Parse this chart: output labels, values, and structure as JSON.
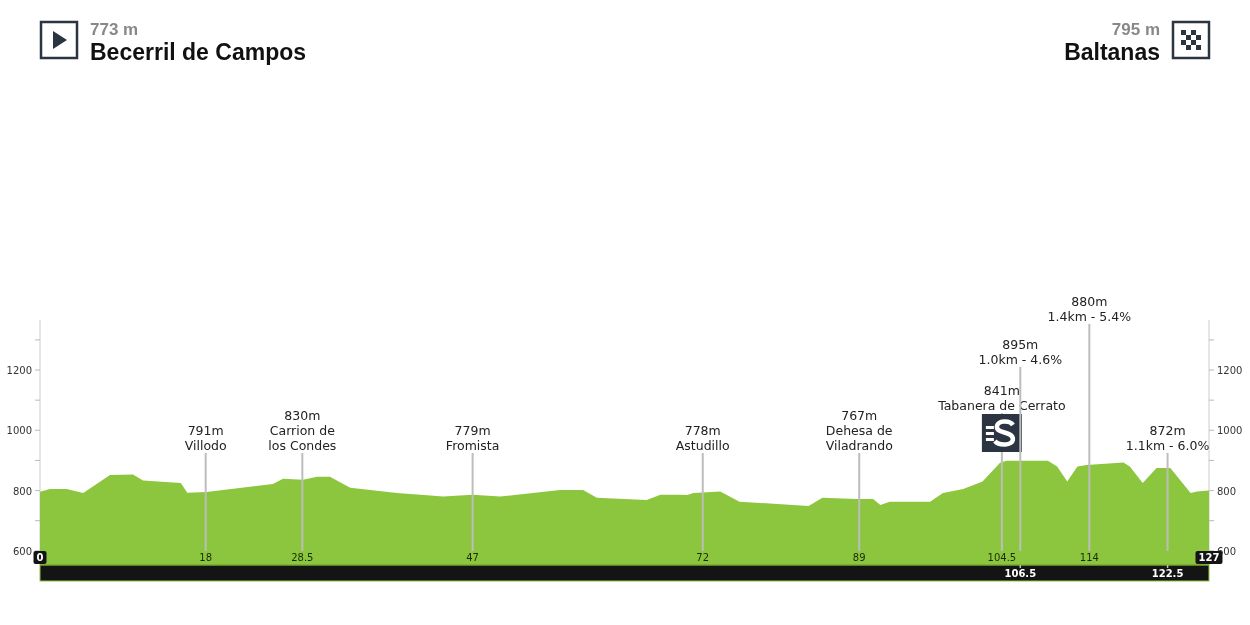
{
  "chart_data": {
    "type": "area",
    "title": "Becerril de Campos",
    "subtitle": "773 m",
    "x": [
      0,
      1.1,
      2.9,
      4.7,
      7.6,
      10.1,
      11.2,
      15.3,
      16,
      18.1,
      25.3,
      26.4,
      28.6,
      30.1,
      31.5,
      33.7,
      38.8,
      43.8,
      47,
      50,
      56.5,
      59,
      60.5,
      65.9,
      67.4,
      69.5,
      70.3,
      71,
      73.9,
      76,
      78.2,
      83.5,
      85,
      88.7,
      90.5,
      91.3,
      92.3,
      96.7,
      98.1,
      100.3,
      102.4,
      104.3,
      105,
      109.5,
      110.5,
      111.6,
      112.7,
      113.7,
      117.7,
      118.4,
      119.8,
      121.3,
      122.8,
      125,
      125.7,
      127
    ],
    "series": [
      {
        "color": "#8cc63e",
        "values": [
          796,
          805,
          805,
          792,
          852,
          853,
          833,
          825,
          793,
          795,
          822,
          839,
          836,
          846,
          846,
          809,
          792,
          780,
          786,
          780,
          802,
          802,
          776,
          769,
          786,
          786,
          785,
          792,
          797,
          763,
          759,
          749,
          776,
          772,
          772,
          752,
          763,
          763,
          792,
          805,
          830,
          892,
          899,
          899,
          880,
          830,
          880,
          885,
          893,
          880,
          825,
          875,
          875,
          792,
          797,
          800
        ]
      }
    ],
    "xlim": [
      0,
      127
    ],
    "xticks": [
      0,
      18,
      28.5,
      47,
      72,
      89,
      104.5,
      114,
      127
    ],
    "x2lim": [
      0,
      127
    ],
    "x2ticks": [
      106.5,
      122.5
    ],
    "ylim": [
      553,
      1366
    ],
    "yticks": [
      600,
      {
        "value": 700,
        "label": null
      },
      800,
      {
        "value": 900,
        "label": null
      },
      1000,
      {
        "value": 1100,
        "label": null
      },
      1200,
      {
        "value": 1300,
        "label": null
      }
    ],
    "y2lim": [
      553,
      1366
    ],
    "y2ticks": [
      600,
      {
        "value": 700,
        "label": null
      },
      800,
      {
        "value": 900,
        "label": null
      },
      1000,
      {
        "value": 1100,
        "label": null
      },
      1200,
      {
        "value": 1300,
        "label": null
      }
    ],
    "ref_lines": [
      {
        "axis": "x",
        "value": 18,
        "label": "791m\nVillodo",
        "color": "#bdbdbd"
      },
      {
        "axis": "x",
        "value": 28.5,
        "label": "830m\nCarrion de\nlos Condes",
        "color": "#bdbdbd"
      },
      {
        "axis": "x",
        "value": 47,
        "label": "779m\nFromista",
        "color": "#bdbdbd"
      },
      {
        "axis": "x",
        "value": 72,
        "label": "778m\nAstudillo",
        "color": "#bdbdbd"
      },
      {
        "axis": "x",
        "value": 89,
        "label": "767m\nDehesa de\nViladrando",
        "color": "#bdbdbd"
      },
      {
        "axis": "x",
        "value": 104.5,
        "label": "841m\nTabanera de Cerrato",
        "color": "#bdbdbd"
      },
      {
        "axis": "x",
        "value": 106.5,
        "label": "895m\n1.0km - 4.6%",
        "color": "#bdbdbd"
      },
      {
        "axis": "x",
        "value": 114,
        "label": "880m\n1.4km - 5.4%",
        "color": "#bdbdbd"
      },
      {
        "axis": "x",
        "value": 122.5,
        "label": "872m\n1.1km - 6.0%",
        "color": "#bdbdbd"
      }
    ],
    "annotations": [
      "795 m",
      "Baltanas"
    ]
  }
}
